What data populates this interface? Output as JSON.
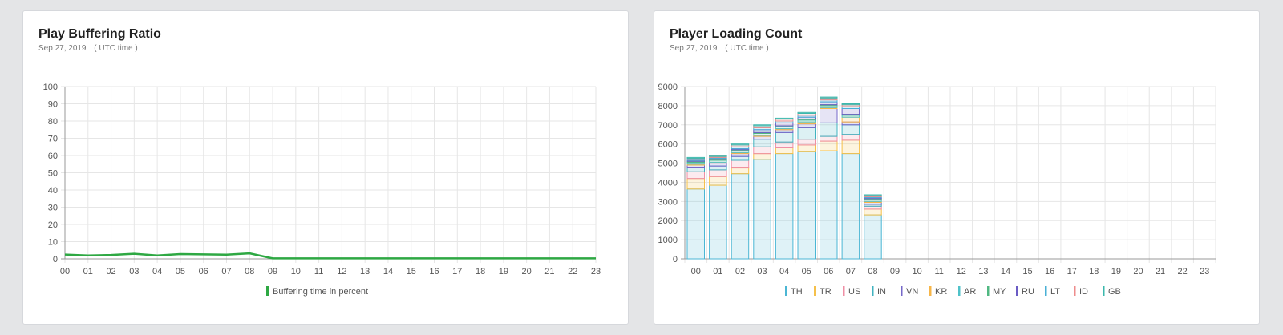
{
  "cards": [
    {
      "title": "Play Buffering Ratio",
      "date": "Sep 27, 2019",
      "timezone": "( UTC time )"
    },
    {
      "title": "Player Loading Count",
      "date": "Sep 27, 2019",
      "timezone": "( UTC time )"
    }
  ],
  "chart_data": [
    {
      "type": "line",
      "title": "Play Buffering Ratio",
      "x": [
        "00",
        "01",
        "02",
        "03",
        "04",
        "05",
        "06",
        "07",
        "08",
        "09",
        "10",
        "11",
        "12",
        "13",
        "14",
        "15",
        "16",
        "17",
        "18",
        "19",
        "20",
        "21",
        "22",
        "23"
      ],
      "ylim": [
        0,
        100
      ],
      "yticks": [
        0,
        10,
        20,
        30,
        40,
        50,
        60,
        70,
        80,
        90,
        100
      ],
      "grid": true,
      "legend_position": "bottom",
      "series": [
        {
          "name": "Buffering time in percent",
          "color": "#2ea843",
          "values": [
            2.5,
            2.0,
            2.3,
            3.0,
            2.0,
            2.8,
            2.6,
            2.4,
            3.2,
            0.3,
            0.3,
            0.3,
            0.3,
            0.3,
            0.3,
            0.3,
            0.3,
            0.3,
            0.3,
            0.3,
            0.3,
            0.3,
            0.3,
            0.3
          ]
        }
      ]
    },
    {
      "type": "bar",
      "stacked": true,
      "title": "Player Loading Count",
      "categories": [
        "00",
        "01",
        "02",
        "03",
        "04",
        "05",
        "06",
        "07",
        "08",
        "09",
        "10",
        "11",
        "12",
        "13",
        "14",
        "15",
        "16",
        "17",
        "18",
        "19",
        "20",
        "21",
        "22",
        "23"
      ],
      "ylim": [
        0,
        9000
      ],
      "yticks": [
        0,
        1000,
        2000,
        3000,
        4000,
        5000,
        6000,
        7000,
        8000,
        9000
      ],
      "grid": true,
      "legend_position": "bottom",
      "series": [
        {
          "name": "TH",
          "color": "#4bb6d4",
          "values": [
            3650,
            3850,
            4450,
            5200,
            5500,
            5600,
            5650,
            5500,
            2300,
            0,
            0,
            0,
            0,
            0,
            0,
            0,
            0,
            0,
            0,
            0,
            0,
            0,
            0,
            0
          ]
        },
        {
          "name": "TR",
          "color": "#f5c04a",
          "values": [
            550,
            450,
            300,
            300,
            300,
            350,
            500,
            700,
            300,
            0,
            0,
            0,
            0,
            0,
            0,
            0,
            0,
            0,
            0,
            0,
            0,
            0,
            0,
            0
          ]
        },
        {
          "name": "US",
          "color": "#ef8fa5",
          "values": [
            350,
            350,
            400,
            350,
            300,
            300,
            250,
            300,
            150,
            0,
            0,
            0,
            0,
            0,
            0,
            0,
            0,
            0,
            0,
            0,
            0,
            0,
            0,
            0
          ]
        },
        {
          "name": "IN",
          "color": "#41b3c0",
          "values": [
            200,
            200,
            200,
            400,
            500,
            600,
            700,
            500,
            100,
            0,
            0,
            0,
            0,
            0,
            0,
            0,
            0,
            0,
            0,
            0,
            0,
            0,
            0,
            0
          ]
        },
        {
          "name": "VN",
          "color": "#7668c9",
          "values": [
            150,
            150,
            150,
            150,
            150,
            200,
            750,
            150,
            100,
            0,
            0,
            0,
            0,
            0,
            0,
            0,
            0,
            0,
            0,
            0,
            0,
            0,
            0,
            0
          ]
        },
        {
          "name": "KR",
          "color": "#f7b648",
          "values": [
            50,
            50,
            50,
            50,
            50,
            100,
            50,
            250,
            50,
            0,
            0,
            0,
            0,
            0,
            0,
            0,
            0,
            0,
            0,
            0,
            0,
            0,
            0,
            0
          ]
        },
        {
          "name": "AR",
          "color": "#4fc2c9",
          "values": [
            100,
            100,
            100,
            100,
            100,
            100,
            100,
            100,
            100,
            0,
            0,
            0,
            0,
            0,
            0,
            0,
            0,
            0,
            0,
            0,
            0,
            0,
            0,
            0
          ]
        },
        {
          "name": "MY",
          "color": "#50b882",
          "values": [
            50,
            50,
            50,
            50,
            50,
            50,
            50,
            50,
            50,
            0,
            0,
            0,
            0,
            0,
            0,
            0,
            0,
            0,
            0,
            0,
            0,
            0,
            0,
            0
          ]
        },
        {
          "name": "RU",
          "color": "#6a5bc4",
          "values": [
            50,
            50,
            50,
            150,
            150,
            100,
            150,
            300,
            50,
            0,
            0,
            0,
            0,
            0,
            0,
            0,
            0,
            0,
            0,
            0,
            0,
            0,
            0,
            0
          ]
        },
        {
          "name": "LT",
          "color": "#49b0d6",
          "values": [
            50,
            50,
            100,
            100,
            100,
            100,
            100,
            100,
            50,
            0,
            0,
            0,
            0,
            0,
            0,
            0,
            0,
            0,
            0,
            0,
            0,
            0,
            0,
            0
          ]
        },
        {
          "name": "ID",
          "color": "#ee8c8c",
          "values": [
            50,
            50,
            100,
            100,
            100,
            100,
            100,
            100,
            50,
            0,
            0,
            0,
            0,
            0,
            0,
            0,
            0,
            0,
            0,
            0,
            0,
            0,
            0,
            0
          ]
        },
        {
          "name": "GB",
          "color": "#3bb8ad",
          "values": [
            50,
            50,
            50,
            50,
            50,
            50,
            50,
            50,
            50,
            0,
            0,
            0,
            0,
            0,
            0,
            0,
            0,
            0,
            0,
            0,
            0,
            0,
            0,
            0
          ]
        }
      ]
    }
  ]
}
